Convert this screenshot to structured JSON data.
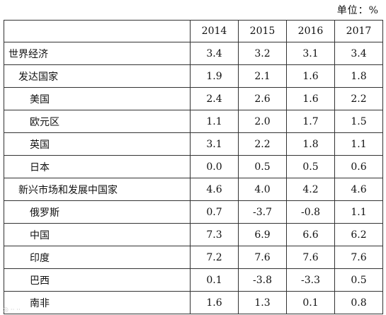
{
  "unit_label": "单位：%",
  "chart_data": {
    "type": "table",
    "columns": [
      "",
      "2014",
      "2015",
      "2016",
      "2017"
    ],
    "rows": [
      {
        "label": "世界经济",
        "level": 0,
        "values": [
          "3.4",
          "3.2",
          "3.1",
          "3.4"
        ]
      },
      {
        "label": "发达国家",
        "level": 1,
        "values": [
          "1.9",
          "2.1",
          "1.6",
          "1.8"
        ]
      },
      {
        "label": "美国",
        "level": 2,
        "values": [
          "2.4",
          "2.6",
          "1.6",
          "2.2"
        ]
      },
      {
        "label": "欧元区",
        "level": 2,
        "values": [
          "1.1",
          "2.0",
          "1.7",
          "1.5"
        ]
      },
      {
        "label": "英国",
        "level": 2,
        "values": [
          "3.1",
          "2.2",
          "1.8",
          "1.1"
        ]
      },
      {
        "label": "日本",
        "level": 2,
        "values": [
          "0.0",
          "0.5",
          "0.5",
          "0.6"
        ]
      },
      {
        "label": "新兴市场和发展中国家",
        "level": 1,
        "values": [
          "4.6",
          "4.0",
          "4.2",
          "4.6"
        ]
      },
      {
        "label": "俄罗斯",
        "level": 2,
        "values": [
          "0.7",
          "-3.7",
          "-0.8",
          "1.1"
        ]
      },
      {
        "label": "中国",
        "level": 2,
        "values": [
          "7.3",
          "6.9",
          "6.6",
          "6.2"
        ]
      },
      {
        "label": "印度",
        "level": 2,
        "values": [
          "7.2",
          "7.6",
          "7.6",
          "7.6"
        ]
      },
      {
        "label": "巴西",
        "level": 2,
        "values": [
          "0.1",
          "-3.8",
          "-3.3",
          "0.5"
        ]
      },
      {
        "label": "南非",
        "level": 2,
        "values": [
          "1.6",
          "1.3",
          "0.1",
          "0.8"
        ]
      }
    ]
  }
}
